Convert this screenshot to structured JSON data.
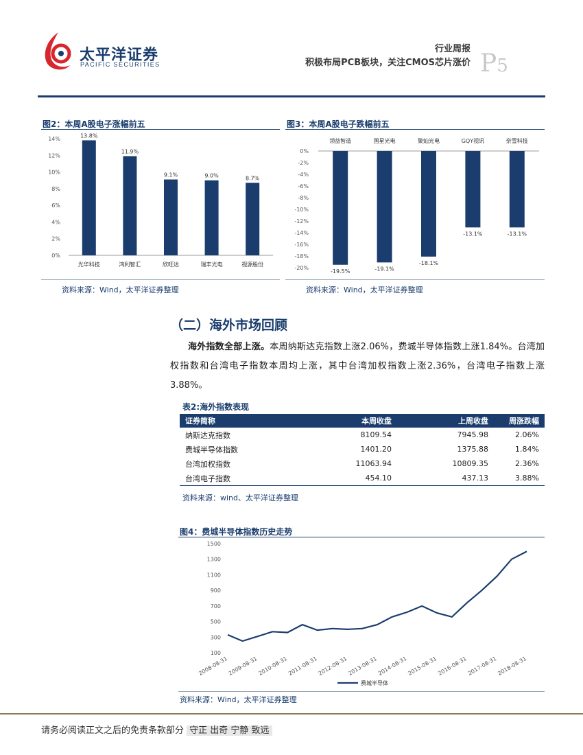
{
  "header": {
    "brand_cn": "太平洋证券",
    "brand_en": "PACIFIC SECURITIES",
    "report_type": "行业周报",
    "report_title": "积极布局PCB板块，关注CMOS芯片涨价",
    "page_prefix": "P",
    "page_num": "5",
    "logo_color": "#d8262f",
    "accent": "#1a3d6d"
  },
  "fig2": {
    "title": "图2：本周A股电子涨幅前五",
    "source": "资料来源：Wind，太平洋证券整理"
  },
  "fig3": {
    "title": "图3：本周A股电子跌幅前五",
    "source": "资料来源：Wind，太平洋证券整理"
  },
  "section": {
    "heading": "（二）海外市场回顾",
    "para_bold": "海外指数全部上涨。",
    "para_text": "本周纳斯达克指数上涨2.06%，费城半导体指数上涨1.84%。台湾加权指数和台湾电子指数本周均上涨，其中台湾加权指数上涨2.36%，台湾电子指数上涨3.88%。"
  },
  "table2": {
    "title": "表2:海外指数表现",
    "headers": [
      "证券简称",
      "本周收盘",
      "上周收盘",
      "周涨跌幅"
    ],
    "rows": [
      [
        "纳斯达克指数",
        "8109.54",
        "7945.98",
        "2.06%"
      ],
      [
        "费城半导体指数",
        "1401.20",
        "1375.88",
        "1.84%"
      ],
      [
        "台湾加权指数",
        "11063.94",
        "10809.35",
        "2.36%"
      ],
      [
        "台湾电子指数",
        "454.10",
        "437.13",
        "3.88%"
      ]
    ],
    "source": "资料来源：wind、太平洋证券整理"
  },
  "fig4": {
    "title": "图4：费城半导体指数历史走势",
    "source": "资料来源：Wind，太平洋证券整理"
  },
  "footer": {
    "disclaimer": "请务必阅读正文之后的免责条款部分",
    "motto": "守正 出奇 宁静 致远"
  },
  "chart_data": [
    {
      "type": "bar",
      "categories": [
        "光华科技",
        "鸿利智汇",
        "欣旺达",
        "瑞丰光电",
        "视源股份"
      ],
      "values": [
        13.8,
        11.9,
        9.1,
        9.0,
        8.7
      ],
      "value_labels": [
        "13.8%",
        "11.9%",
        "9.1%",
        "9.0%",
        "8.7%"
      ],
      "ylim": [
        0,
        14
      ],
      "yticks": [
        "0%",
        "2%",
        "4%",
        "6%",
        "8%",
        "10%",
        "12%",
        "14%"
      ],
      "color": "#1a3d6d"
    },
    {
      "type": "bar",
      "categories": [
        "领益智造",
        "国星光电",
        "聚灿光电",
        "GQY视讯",
        "奈雪科技"
      ],
      "values": [
        -19.5,
        -19.1,
        -18.1,
        -13.1,
        -13.1
      ],
      "value_labels": [
        "-19.5%",
        "-19.1%",
        "-18.1%",
        "-13.1%",
        "-13.1%"
      ],
      "ylim": [
        -20,
        0
      ],
      "yticks": [
        "0%",
        "-2%",
        "-4%",
        "-6%",
        "-8%",
        "-10%",
        "-12%",
        "-14%",
        "-16%",
        "-18%",
        "-20%"
      ],
      "color": "#1a3d6d"
    },
    {
      "type": "line",
      "x": [
        "2008-08-31",
        "2009-02-28",
        "2009-08-31",
        "2010-02-28",
        "2010-08-31",
        "2011-02-28",
        "2011-08-31",
        "2012-02-29",
        "2012-08-31",
        "2013-02-28",
        "2013-08-31",
        "2014-02-28",
        "2014-08-31",
        "2015-02-28",
        "2015-08-31",
        "2016-02-29",
        "2016-08-31",
        "2017-02-28",
        "2017-08-31",
        "2018-02-28",
        "2018-08-31"
      ],
      "series": [
        {
          "name": "费城半导体",
          "values": [
            330,
            250,
            310,
            370,
            360,
            460,
            390,
            410,
            400,
            410,
            460,
            560,
            620,
            700,
            610,
            560,
            740,
            900,
            1080,
            1300,
            1400
          ]
        }
      ],
      "xticks": [
        "2008-08-31",
        "2009-08-31",
        "2010-08-31",
        "2011-08-31",
        "2012-08-31",
        "2013-08-31",
        "2014-08-31",
        "2015-08-31",
        "2016-08-31",
        "2017-08-31",
        "2018-08-31"
      ],
      "yticks": [
        "100",
        "300",
        "500",
        "700",
        "900",
        "1100",
        "1300",
        "1500"
      ],
      "ylim": [
        100,
        1500
      ],
      "legend": "bottom",
      "color": "#1a3d6d"
    }
  ]
}
